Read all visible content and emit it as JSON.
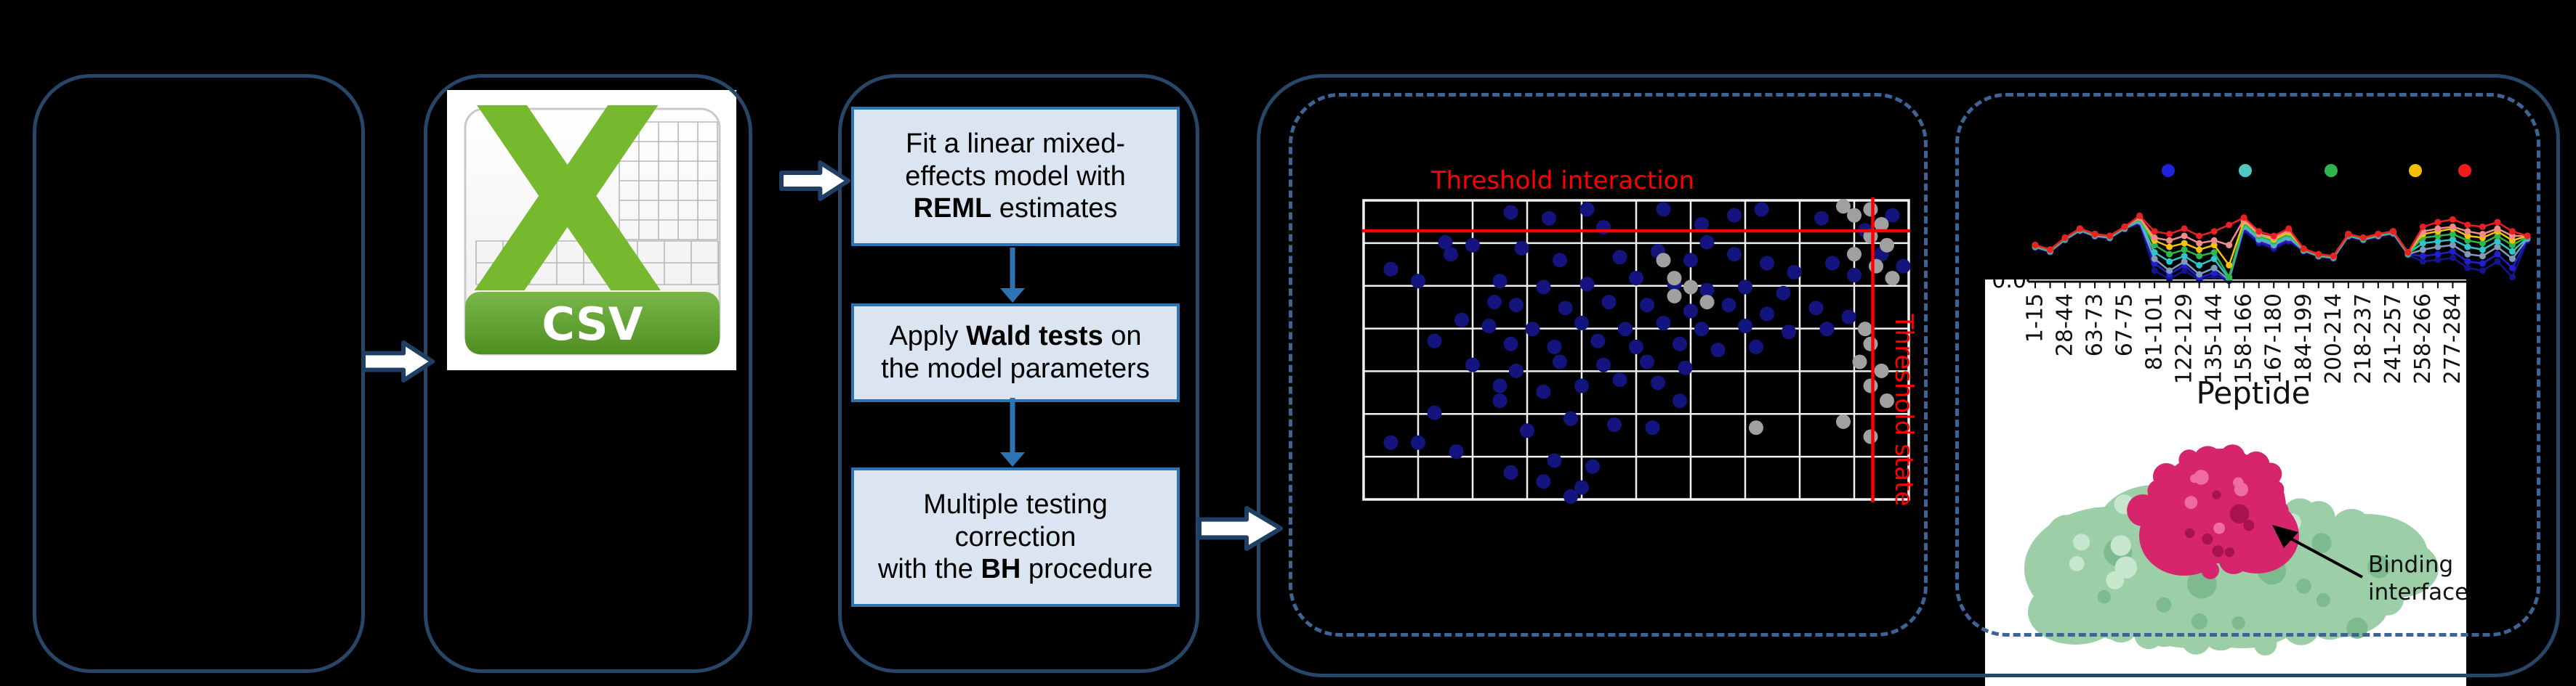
{
  "background": "#000000",
  "colors": {
    "panel_border": "#274668",
    "dashed_border": "#3d6494",
    "flow_box_fill": "#dbe5f1",
    "flow_box_border": "#2e74b5",
    "flow_arrow": "#2e74b5",
    "block_arrow_outline": "#1f4064",
    "block_arrow_fill": "#ffffff",
    "threshold_red": "#ff0000",
    "grid_white": "#f0f0f0",
    "csv_green": "#76b82e",
    "csv_banner_dark": "#4f8f22",
    "protein_green": "#9ccfa8",
    "protein_green_dark": "#7dbb8e",
    "protein_green_light": "#c6e6cd",
    "interface_magenta": "#d6246d",
    "interface_magenta_dark": "#a8124f",
    "interface_magenta_light": "#ef6ba0"
  },
  "panel2": {
    "csv_icon_letter": "X",
    "csv_icon_label": "CSV"
  },
  "panel3": {
    "boxes": [
      {
        "lines": [
          [
            {
              "t": "Fit a linear mixed-"
            }
          ],
          [
            {
              "t": "effects model with"
            }
          ],
          [
            {
              "t": "REML",
              "b": 1
            },
            {
              "t": " estimates"
            }
          ]
        ]
      },
      {
        "lines": [
          [
            {
              "t": "Apply "
            },
            {
              "t": "Wald tests",
              "b": 1
            },
            {
              "t": " on"
            }
          ],
          [
            {
              "t": "the model parameters"
            }
          ]
        ]
      },
      {
        "lines": [
          [
            {
              "t": "Multiple testing"
            }
          ],
          [
            {
              "t": "correction"
            }
          ],
          [
            {
              "t": "with the ",
              "b": 0
            },
            {
              "t": "BH",
              "b": 1
            },
            {
              "t": " procedure"
            }
          ]
        ]
      }
    ]
  },
  "panel4": {
    "threshold_interaction_label": "Threshold interaction",
    "threshold_state_label": "Threshold state"
  },
  "panel5": {
    "y_tick": "0.0",
    "xlabel": "Peptide",
    "binding_label_line1": "Binding",
    "binding_label_line2": "interface"
  },
  "chart_data": [
    {
      "type": "scatter",
      "title": "",
      "grid": {
        "cols": 10,
        "rows": 7
      },
      "threshold_lines": {
        "interaction_y_frac": 0.102,
        "state_x_frac": 0.934,
        "color": "#ff0000"
      },
      "annotations": [
        "Threshold interaction",
        "Threshold state"
      ],
      "series": [
        {
          "name": "significant",
          "color": "#14147e",
          "points": [
            [
              0.27,
              0.04
            ],
            [
              0.34,
              0.06
            ],
            [
              0.41,
              0.03
            ],
            [
              0.44,
              0.09
            ],
            [
              0.55,
              0.03
            ],
            [
              0.62,
              0.08
            ],
            [
              0.68,
              0.05
            ],
            [
              0.73,
              0.03
            ],
            [
              0.84,
              0.06
            ],
            [
              0.97,
              0.05
            ],
            [
              0.92,
              0.1
            ],
            [
              0.15,
              0.14
            ],
            [
              0.16,
              0.18
            ],
            [
              0.2,
              0.15
            ],
            [
              0.29,
              0.16
            ],
            [
              0.36,
              0.2
            ],
            [
              0.47,
              0.19
            ],
            [
              0.54,
              0.17
            ],
            [
              0.6,
              0.2
            ],
            [
              0.63,
              0.14
            ],
            [
              0.68,
              0.18
            ],
            [
              0.74,
              0.21
            ],
            [
              0.79,
              0.24
            ],
            [
              0.86,
              0.21
            ],
            [
              0.95,
              0.18
            ],
            [
              0.9,
              0.25
            ],
            [
              0.99,
              0.22
            ],
            [
              0.05,
              0.23
            ],
            [
              0.1,
              0.27
            ],
            [
              0.25,
              0.27
            ],
            [
              0.33,
              0.29
            ],
            [
              0.41,
              0.28
            ],
            [
              0.5,
              0.26
            ],
            [
              0.57,
              0.28
            ],
            [
              0.63,
              0.3
            ],
            [
              0.7,
              0.29
            ],
            [
              0.77,
              0.31
            ],
            [
              0.24,
              0.34
            ],
            [
              0.28,
              0.35
            ],
            [
              0.37,
              0.36
            ],
            [
              0.45,
              0.34
            ],
            [
              0.52,
              0.35
            ],
            [
              0.6,
              0.37
            ],
            [
              0.67,
              0.35
            ],
            [
              0.74,
              0.38
            ],
            [
              0.83,
              0.36
            ],
            [
              0.89,
              0.39
            ],
            [
              0.18,
              0.4
            ],
            [
              0.23,
              0.42
            ],
            [
              0.31,
              0.43
            ],
            [
              0.4,
              0.41
            ],
            [
              0.48,
              0.43
            ],
            [
              0.55,
              0.41
            ],
            [
              0.62,
              0.43
            ],
            [
              0.7,
              0.42
            ],
            [
              0.78,
              0.44
            ],
            [
              0.85,
              0.43
            ],
            [
              0.13,
              0.47
            ],
            [
              0.27,
              0.48
            ],
            [
              0.35,
              0.49
            ],
            [
              0.43,
              0.47
            ],
            [
              0.5,
              0.49
            ],
            [
              0.58,
              0.48
            ],
            [
              0.65,
              0.5
            ],
            [
              0.72,
              0.49
            ],
            [
              0.2,
              0.55
            ],
            [
              0.28,
              0.57
            ],
            [
              0.36,
              0.54
            ],
            [
              0.44,
              0.55
            ],
            [
              0.52,
              0.54
            ],
            [
              0.59,
              0.56
            ],
            [
              0.25,
              0.62
            ],
            [
              0.33,
              0.64
            ],
            [
              0.4,
              0.62
            ],
            [
              0.47,
              0.6
            ],
            [
              0.54,
              0.61
            ],
            [
              0.58,
              0.67
            ],
            [
              0.13,
              0.71
            ],
            [
              0.25,
              0.67
            ],
            [
              0.38,
              0.73
            ],
            [
              0.46,
              0.75
            ],
            [
              0.3,
              0.77
            ],
            [
              0.53,
              0.76
            ],
            [
              0.05,
              0.81
            ],
            [
              0.17,
              0.84
            ],
            [
              0.1,
              0.81
            ],
            [
              0.35,
              0.87
            ],
            [
              0.42,
              0.89
            ],
            [
              0.27,
              0.91
            ],
            [
              0.33,
              0.94
            ],
            [
              0.4,
              0.96
            ],
            [
              0.38,
              0.99
            ]
          ]
        },
        {
          "name": "non-significant",
          "color": "#a0a0a0",
          "points": [
            [
              0.88,
              0.02
            ],
            [
              0.9,
              0.05
            ],
            [
              0.93,
              0.03
            ],
            [
              0.95,
              0.08
            ],
            [
              0.93,
              0.12
            ],
            [
              0.96,
              0.15
            ],
            [
              0.9,
              0.18
            ],
            [
              0.94,
              0.22
            ],
            [
              0.97,
              0.26
            ],
            [
              0.55,
              0.2
            ],
            [
              0.57,
              0.26
            ],
            [
              0.57,
              0.32
            ],
            [
              0.63,
              0.34
            ],
            [
              0.6,
              0.29
            ],
            [
              0.92,
              0.43
            ],
            [
              0.93,
              0.48
            ],
            [
              0.91,
              0.54
            ],
            [
              0.95,
              0.57
            ],
            [
              0.93,
              0.62
            ],
            [
              0.96,
              0.67
            ],
            [
              0.88,
              0.74
            ],
            [
              0.93,
              0.79
            ],
            [
              0.72,
              0.76
            ]
          ]
        }
      ]
    },
    {
      "type": "line",
      "xlabel": "Peptide",
      "y_tick_label": "0.0",
      "n_points": 34,
      "x_tick_labels": [
        "1-15",
        "28-44",
        "63-73",
        "67-75",
        "81-101",
        "122-129",
        "135-144",
        "158-166",
        "167-180",
        "184-199",
        "200-214",
        "218-237",
        "241-257",
        "258-266",
        "277-284"
      ],
      "legend_dot_colors": [
        "#2020dd",
        "#50c8c4",
        "#2fb54e",
        "#f3c000",
        "#ee1c1c"
      ],
      "series": [
        {
          "name": "navy",
          "color": "#14148c",
          "values": [
            0.37,
            0.32,
            0.45,
            0.55,
            0.49,
            0.47,
            0.57,
            0.64,
            0.12,
            0.03,
            0.12,
            0.02,
            0.06,
            0.01,
            0.56,
            0.42,
            0.36,
            0.44,
            0.33,
            0.27,
            0.25,
            0.49,
            0.45,
            0.49,
            0.52,
            0.29,
            0.22,
            0.24,
            0.26,
            0.15,
            0.12,
            0.22,
            0.05,
            0.45
          ]
        },
        {
          "name": "blue",
          "color": "#2020d0",
          "values": [
            0.38,
            0.33,
            0.46,
            0.56,
            0.5,
            0.48,
            0.58,
            0.65,
            0.2,
            0.08,
            0.18,
            0.04,
            0.1,
            0.02,
            0.58,
            0.44,
            0.38,
            0.46,
            0.34,
            0.28,
            0.26,
            0.5,
            0.46,
            0.5,
            0.53,
            0.3,
            0.28,
            0.3,
            0.33,
            0.22,
            0.2,
            0.3,
            0.15,
            0.46
          ]
        },
        {
          "name": "steel",
          "color": "#7f9db9",
          "values": [
            0.38,
            0.33,
            0.46,
            0.56,
            0.5,
            0.48,
            0.58,
            0.66,
            0.25,
            0.12,
            0.22,
            0.08,
            0.15,
            0.02,
            0.6,
            0.46,
            0.4,
            0.48,
            0.34,
            0.28,
            0.26,
            0.5,
            0.46,
            0.5,
            0.53,
            0.3,
            0.35,
            0.38,
            0.4,
            0.3,
            0.28,
            0.38,
            0.25,
            0.47
          ]
        },
        {
          "name": "cyan",
          "color": "#2fc5c9",
          "values": [
            0.39,
            0.34,
            0.47,
            0.57,
            0.51,
            0.49,
            0.59,
            0.68,
            0.32,
            0.22,
            0.28,
            0.18,
            0.25,
            0.03,
            0.62,
            0.48,
            0.42,
            0.5,
            0.35,
            0.29,
            0.27,
            0.51,
            0.47,
            0.51,
            0.54,
            0.31,
            0.42,
            0.44,
            0.46,
            0.38,
            0.35,
            0.44,
            0.33,
            0.48
          ]
        },
        {
          "name": "green",
          "color": "#2db84d",
          "values": [
            0.39,
            0.34,
            0.47,
            0.57,
            0.51,
            0.49,
            0.59,
            0.69,
            0.4,
            0.3,
            0.35,
            0.28,
            0.32,
            0.05,
            0.64,
            0.5,
            0.44,
            0.52,
            0.35,
            0.29,
            0.27,
            0.51,
            0.47,
            0.51,
            0.54,
            0.31,
            0.48,
            0.5,
            0.52,
            0.45,
            0.42,
            0.5,
            0.4,
            0.49
          ]
        },
        {
          "name": "yellow",
          "color": "#f4c20d",
          "values": [
            0.4,
            0.35,
            0.48,
            0.58,
            0.52,
            0.5,
            0.6,
            0.7,
            0.45,
            0.38,
            0.42,
            0.35,
            0.4,
            0.18,
            0.66,
            0.52,
            0.46,
            0.54,
            0.36,
            0.3,
            0.28,
            0.52,
            0.48,
            0.52,
            0.55,
            0.32,
            0.52,
            0.55,
            0.58,
            0.5,
            0.48,
            0.55,
            0.45,
            0.5
          ]
        },
        {
          "name": "salmon",
          "color": "#ef8d8d",
          "values": [
            0.4,
            0.35,
            0.48,
            0.58,
            0.52,
            0.5,
            0.6,
            0.7,
            0.48,
            0.45,
            0.5,
            0.42,
            0.45,
            0.4,
            0.68,
            0.52,
            0.48,
            0.56,
            0.36,
            0.3,
            0.28,
            0.52,
            0.48,
            0.52,
            0.55,
            0.32,
            0.55,
            0.58,
            0.6,
            0.55,
            0.52,
            0.58,
            0.5,
            0.5
          ]
        },
        {
          "name": "red",
          "color": "#ea1f1f",
          "values": [
            0.4,
            0.35,
            0.48,
            0.58,
            0.52,
            0.5,
            0.6,
            0.72,
            0.55,
            0.52,
            0.58,
            0.5,
            0.55,
            0.62,
            0.7,
            0.55,
            0.5,
            0.58,
            0.36,
            0.3,
            0.28,
            0.52,
            0.48,
            0.52,
            0.55,
            0.32,
            0.6,
            0.65,
            0.68,
            0.62,
            0.6,
            0.65,
            0.55,
            0.5
          ]
        }
      ]
    }
  ]
}
